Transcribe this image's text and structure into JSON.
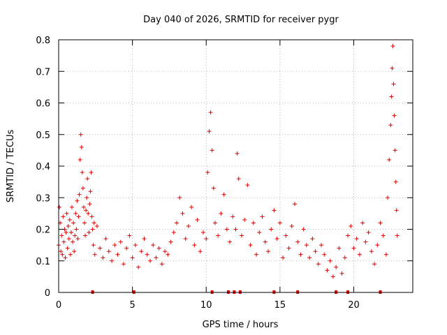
{
  "chart_data": {
    "type": "scatter",
    "title": "Day 040 of 2026, SRMTID for receiver pygr",
    "xlabel": "GPS time / hours",
    "ylabel": "SRMTID / TECUs",
    "xlim": [
      0,
      24
    ],
    "ylim": [
      0,
      0.8
    ],
    "xticks": [
      "0",
      "5",
      "10",
      "15",
      "20"
    ],
    "yticks": [
      "0",
      "0.1",
      "0.2",
      "0.3",
      "0.4",
      "0.5",
      "0.6",
      "0.7",
      "0.8"
    ],
    "grid": true,
    "series": [
      {
        "name": "SRMTID",
        "color": "#e00000",
        "marker": "plus",
        "points": [
          [
            0.0,
            0.15
          ],
          [
            0.05,
            0.27
          ],
          [
            0.1,
            0.22
          ],
          [
            0.15,
            0.13
          ],
          [
            0.2,
            0.18
          ],
          [
            0.25,
            0.12
          ],
          [
            0.3,
            0.24
          ],
          [
            0.35,
            0.16
          ],
          [
            0.4,
            0.2
          ],
          [
            0.45,
            0.11
          ],
          [
            0.5,
            0.19
          ],
          [
            0.55,
            0.25
          ],
          [
            0.6,
            0.14
          ],
          [
            0.65,
            0.21
          ],
          [
            0.7,
            0.17
          ],
          [
            0.75,
            0.23
          ],
          [
            0.8,
            0.12
          ],
          [
            0.85,
            0.19
          ],
          [
            0.9,
            0.27
          ],
          [
            0.95,
            0.16
          ],
          [
            1.0,
            0.22
          ],
          [
            1.05,
            0.13
          ],
          [
            1.1,
            0.18
          ],
          [
            1.15,
            0.25
          ],
          [
            1.2,
            0.2
          ],
          [
            1.25,
            0.29
          ],
          [
            1.3,
            0.17
          ],
          [
            1.35,
            0.24
          ],
          [
            1.4,
            0.31
          ],
          [
            1.45,
            0.42
          ],
          [
            1.5,
            0.5
          ],
          [
            1.55,
            0.46
          ],
          [
            1.6,
            0.38
          ],
          [
            1.65,
            0.33
          ],
          [
            1.7,
            0.27
          ],
          [
            1.75,
            0.22
          ],
          [
            1.8,
            0.18
          ],
          [
            1.85,
            0.26
          ],
          [
            1.9,
            0.3
          ],
          [
            1.95,
            0.36
          ],
          [
            2.0,
            0.25
          ],
          [
            2.05,
            0.19
          ],
          [
            2.1,
            0.28
          ],
          [
            2.15,
            0.32
          ],
          [
            2.2,
            0.38
          ],
          [
            2.25,
            0.24
          ],
          [
            2.3,
            0.2
          ],
          [
            2.35,
            0.15
          ],
          [
            2.4,
            0.22
          ],
          [
            2.45,
            0.12
          ],
          [
            2.6,
            0.21
          ],
          [
            2.8,
            0.14
          ],
          [
            3.0,
            0.11
          ],
          [
            3.2,
            0.17
          ],
          [
            3.4,
            0.13
          ],
          [
            3.6,
            0.1
          ],
          [
            3.8,
            0.15
          ],
          [
            4.0,
            0.12
          ],
          [
            4.2,
            0.16
          ],
          [
            4.4,
            0.09
          ],
          [
            4.6,
            0.14
          ],
          [
            4.8,
            0.18
          ],
          [
            5.0,
            0.11
          ],
          [
            5.2,
            0.15
          ],
          [
            5.4,
            0.08
          ],
          [
            5.6,
            0.13
          ],
          [
            5.8,
            0.17
          ],
          [
            6.0,
            0.12
          ],
          [
            6.2,
            0.1
          ],
          [
            6.4,
            0.15
          ],
          [
            6.6,
            0.11
          ],
          [
            6.8,
            0.14
          ],
          [
            7.0,
            0.09
          ],
          [
            7.2,
            0.13
          ],
          [
            7.4,
            0.12
          ],
          [
            7.6,
            0.16
          ],
          [
            7.8,
            0.19
          ],
          [
            8.0,
            0.22
          ],
          [
            8.2,
            0.3
          ],
          [
            8.4,
            0.25
          ],
          [
            8.6,
            0.17
          ],
          [
            8.8,
            0.21
          ],
          [
            9.0,
            0.27
          ],
          [
            9.2,
            0.15
          ],
          [
            9.4,
            0.23
          ],
          [
            9.6,
            0.13
          ],
          [
            9.8,
            0.19
          ],
          [
            10.0,
            0.17
          ],
          [
            10.1,
            0.38
          ],
          [
            10.2,
            0.51
          ],
          [
            10.3,
            0.57
          ],
          [
            10.4,
            0.45
          ],
          [
            10.5,
            0.33
          ],
          [
            10.6,
            0.22
          ],
          [
            10.8,
            0.18
          ],
          [
            11.0,
            0.25
          ],
          [
            11.2,
            0.31
          ],
          [
            11.4,
            0.2
          ],
          [
            11.6,
            0.16
          ],
          [
            11.8,
            0.24
          ],
          [
            12.0,
            0.2
          ],
          [
            12.1,
            0.44
          ],
          [
            12.2,
            0.36
          ],
          [
            12.4,
            0.18
          ],
          [
            12.6,
            0.23
          ],
          [
            12.8,
            0.34
          ],
          [
            13.0,
            0.15
          ],
          [
            13.2,
            0.22
          ],
          [
            13.4,
            0.12
          ],
          [
            13.6,
            0.19
          ],
          [
            13.8,
            0.24
          ],
          [
            14.0,
            0.16
          ],
          [
            14.2,
            0.13
          ],
          [
            14.4,
            0.2
          ],
          [
            14.6,
            0.26
          ],
          [
            14.8,
            0.17
          ],
          [
            15.0,
            0.22
          ],
          [
            15.2,
            0.11
          ],
          [
            15.4,
            0.18
          ],
          [
            15.6,
            0.14
          ],
          [
            15.8,
            0.21
          ],
          [
            16.0,
            0.28
          ],
          [
            16.2,
            0.16
          ],
          [
            16.4,
            0.12
          ],
          [
            16.6,
            0.2
          ],
          [
            16.8,
            0.15
          ],
          [
            17.0,
            0.11
          ],
          [
            17.2,
            0.17
          ],
          [
            17.4,
            0.13
          ],
          [
            17.6,
            0.09
          ],
          [
            17.8,
            0.15
          ],
          [
            18.0,
            0.12
          ],
          [
            18.2,
            0.07
          ],
          [
            18.4,
            0.1
          ],
          [
            18.6,
            0.05
          ],
          [
            18.8,
            0.08
          ],
          [
            19.0,
            0.14
          ],
          [
            19.2,
            0.06
          ],
          [
            19.4,
            0.11
          ],
          [
            19.6,
            0.18
          ],
          [
            19.8,
            0.21
          ],
          [
            20.0,
            0.14
          ],
          [
            20.2,
            0.17
          ],
          [
            20.4,
            0.12
          ],
          [
            20.6,
            0.22
          ],
          [
            20.8,
            0.16
          ],
          [
            21.0,
            0.19
          ],
          [
            21.2,
            0.13
          ],
          [
            21.4,
            0.09
          ],
          [
            21.6,
            0.15
          ],
          [
            21.8,
            0.22
          ],
          [
            22.0,
            0.18
          ],
          [
            22.2,
            0.12
          ],
          [
            22.3,
            0.3
          ],
          [
            22.4,
            0.42
          ],
          [
            22.5,
            0.53
          ],
          [
            22.55,
            0.62
          ],
          [
            22.6,
            0.71
          ],
          [
            22.65,
            0.78
          ],
          [
            22.7,
            0.66
          ],
          [
            22.75,
            0.56
          ],
          [
            22.8,
            0.45
          ],
          [
            22.85,
            0.35
          ],
          [
            22.9,
            0.26
          ],
          [
            22.95,
            0.18
          ]
        ]
      }
    ],
    "bottom_markers_hours": [
      2.3,
      5.1,
      10.4,
      11.5,
      11.9,
      12.3,
      14.6,
      16.2,
      18.8,
      19.6,
      21.8
    ]
  }
}
